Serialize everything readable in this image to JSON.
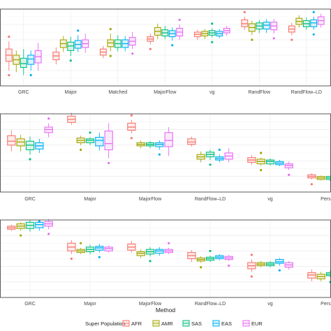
{
  "chart_data": {
    "type": "box",
    "xlabel": "Method",
    "legend": {
      "title": "Super Population",
      "placement": "bottom",
      "entries": [
        {
          "name": "AFR",
          "color": "#F8766D"
        },
        {
          "name": "AMR",
          "color": "#A3A500"
        },
        {
          "name": "SAS",
          "color": "#00BF7D"
        },
        {
          "name": "EAS",
          "color": "#00B0F6"
        },
        {
          "name": "EUR",
          "color": "#E76BF3"
        }
      ]
    },
    "grid": true,
    "panels": [
      {
        "categories": [
          "GRC",
          "Major",
          "Matched",
          "MajorFlow",
          "vg",
          "RandFlow",
          "RandFlow–LD",
          "Peo"
        ],
        "ylim": [
          0,
          10
        ],
        "groups": [
          [
            [
              2.0,
              3.2,
              4.0,
              4.8,
              5.8
            ],
            [
              1.8,
              2.8,
              3.4,
              4.0,
              4.6
            ],
            [
              1.4,
              2.4,
              2.9,
              3.6,
              4.8
            ],
            [
              2.0,
              2.8,
              3.5,
              4.0,
              4.6
            ],
            [
              2.0,
              3.0,
              3.8,
              4.6,
              5.6
            ]
          ],
          [
            [
              2.8,
              3.4,
              3.9,
              4.4,
              5.0
            ],
            [
              4.4,
              5.0,
              5.5,
              6.0,
              6.5
            ],
            [
              3.9,
              4.6,
              5.2,
              5.7,
              6.4
            ],
            [
              4.4,
              4.9,
              5.4,
              5.9,
              6.6
            ],
            [
              4.3,
              5.0,
              5.5,
              6.0,
              6.8
            ]
          ],
          [
            [
              3.6,
              4.0,
              4.4,
              4.8,
              5.2
            ],
            [
              4.5,
              5.1,
              5.6,
              6.0,
              6.8
            ],
            [
              4.5,
              5.0,
              5.5,
              6.0,
              6.6
            ],
            [
              4.5,
              5.0,
              5.5,
              6.0,
              6.5
            ],
            [
              4.8,
              5.3,
              5.8,
              6.3,
              7.0
            ]
          ],
          [
            [
              5.4,
              5.8,
              6.1,
              6.4,
              6.8
            ],
            [
              6.1,
              6.6,
              7.1,
              7.6,
              8.1
            ],
            [
              6.1,
              6.5,
              6.9,
              7.3,
              7.8
            ],
            [
              5.9,
              6.4,
              6.8,
              7.2,
              7.6
            ],
            [
              6.0,
              6.5,
              7.0,
              7.5,
              8.0
            ]
          ],
          [
            [
              6.0,
              6.4,
              6.7,
              7.0,
              7.3
            ],
            [
              6.1,
              6.5,
              6.8,
              7.1,
              7.4
            ],
            [
              6.3,
              6.6,
              6.9,
              7.2,
              7.5
            ],
            [
              6.2,
              6.5,
              6.8,
              7.1,
              7.4
            ],
            [
              6.5,
              6.9,
              7.2,
              7.5,
              7.8
            ]
          ],
          [
            [
              7.3,
              7.7,
              8.1,
              8.6,
              9.0
            ],
            [
              6.6,
              7.1,
              7.6,
              8.1,
              8.5
            ],
            [
              6.9,
              7.4,
              7.8,
              8.2,
              8.6
            ],
            [
              6.9,
              7.4,
              7.9,
              8.3,
              8.7
            ],
            [
              6.8,
              7.3,
              7.8,
              8.3,
              8.7
            ]
          ],
          [
            [
              6.6,
              7.0,
              7.4,
              7.8,
              8.2
            ],
            [
              7.6,
              8.0,
              8.4,
              8.8,
              9.2
            ],
            [
              7.3,
              7.7,
              8.1,
              8.5,
              8.9
            ],
            [
              7.3,
              7.7,
              8.2,
              8.6,
              9.0
            ],
            [
              7.6,
              8.0,
              8.5,
              9.0,
              9.4
            ]
          ],
          [
            [
              8.3,
              8.7,
              9.1,
              9.5,
              9.9
            ],
            [
              8.3,
              8.7,
              9.1,
              9.5,
              9.9
            ],
            [
              8.3,
              8.7,
              9.1,
              9.5,
              9.9
            ],
            [
              8.3,
              8.7,
              9.1,
              9.5,
              9.9
            ],
            [
              8.3,
              8.7,
              9.1,
              9.5,
              9.9
            ]
          ]
        ]
      },
      {
        "categories": [
          "GRC",
          "Major",
          "MajorFlow",
          "RandFlow–LD",
          "vg",
          "Personal"
        ],
        "ylim": [
          0,
          10
        ],
        "groups": [
          [
            [
              5.2,
              6.0,
              6.5,
              7.2,
              7.9
            ],
            [
              5.2,
              5.9,
              6.4,
              6.8,
              7.3
            ],
            [
              4.8,
              5.4,
              6.0,
              6.5,
              7.1
            ],
            [
              5.0,
              5.5,
              5.9,
              6.3,
              6.8
            ],
            [
              7.0,
              7.6,
              8.0,
              8.3,
              8.8
            ]
          ],
          [
            [
              8.6,
              8.9,
              9.3,
              9.7,
              10.1
            ],
            [
              6.0,
              6.3,
              6.6,
              6.9,
              7.2
            ],
            [
              6.0,
              6.3,
              6.6,
              6.8,
              7.0
            ],
            [
              5.3,
              5.9,
              6.6,
              7.0,
              7.6
            ],
            [
              4.3,
              5.4,
              6.2,
              7.8,
              8.8
            ]
          ],
          [
            [
              7.5,
              7.9,
              8.3,
              8.8,
              9.2
            ],
            [
              5.6,
              5.9,
              6.1,
              6.3,
              6.6
            ],
            [
              5.6,
              5.9,
              6.1,
              6.3,
              6.5
            ],
            [
              5.4,
              5.8,
              6.1,
              6.3,
              6.6
            ],
            [
              4.6,
              5.8,
              6.6,
              7.6,
              8.3
            ]
          ],
          [
            [
              5.8,
              6.1,
              6.4,
              6.8,
              7.1
            ],
            [
              3.8,
              4.2,
              4.5,
              4.8,
              5.2
            ],
            [
              4.1,
              4.5,
              4.8,
              5.1,
              5.4
            ],
            [
              3.8,
              4.1,
              4.3,
              4.5,
              4.8
            ],
            [
              3.8,
              4.2,
              4.6,
              5.0,
              5.6
            ]
          ],
          [
            [
              3.5,
              3.8,
              4.1,
              4.4,
              4.7
            ],
            [
              3.4,
              3.6,
              3.9,
              4.2,
              4.4
            ],
            [
              3.4,
              3.6,
              3.9,
              4.1,
              4.3
            ],
            [
              3.3,
              3.5,
              3.7,
              3.9,
              4.1
            ],
            [
              2.8,
              3.1,
              3.4,
              3.6,
              3.9
            ]
          ],
          [
            [
              1.6,
              1.8,
              2.0,
              2.2,
              2.4
            ],
            [
              1.5,
              1.6,
              1.8,
              2.0,
              2.1
            ],
            [
              1.4,
              1.6,
              1.8,
              2.0,
              2.1
            ],
            [
              1.5,
              1.7,
              1.9,
              2.0,
              2.2
            ],
            [
              1.6,
              1.8,
              1.9,
              2.1,
              2.2
            ]
          ]
        ]
      },
      {
        "categories": [
          "GRC",
          "Major",
          "MajorFlow",
          "RandFlow–LD",
          "vg",
          "Personal"
        ],
        "ylim": [
          0,
          10
        ],
        "groups": [
          [
            [
              8.6,
              8.8,
              9.0,
              9.2,
              9.4
            ],
            [
              8.6,
              8.9,
              9.2,
              9.5,
              9.7
            ],
            [
              8.5,
              8.9,
              9.3,
              9.7,
              10.0
            ],
            [
              8.6,
              9.0,
              9.4,
              9.7,
              10.0
            ],
            [
              8.8,
              9.2,
              9.5,
              9.8,
              10.1
            ]
          ],
          [
            [
              5.6,
              6.0,
              6.5,
              7.0,
              7.4
            ],
            [
              5.6,
              5.8,
              6.0,
              6.2,
              6.4
            ],
            [
              5.6,
              5.9,
              6.2,
              6.5,
              6.8
            ],
            [
              5.8,
              6.1,
              6.4,
              6.6,
              6.9
            ],
            [
              5.8,
              6.0,
              6.3,
              6.5,
              6.7
            ]
          ],
          [
            [
              5.8,
              6.1,
              6.5,
              6.9,
              7.3
            ],
            [
              5.1,
              5.4,
              5.7,
              5.9,
              6.2
            ],
            [
              5.3,
              5.6,
              5.9,
              6.2,
              6.5
            ],
            [
              5.4,
              5.7,
              6.0,
              6.2,
              6.5
            ],
            [
              5.6,
              5.8,
              6.0,
              6.2,
              6.4
            ]
          ],
          [
            [
              4.6,
              5.0,
              5.4,
              5.8,
              6.1
            ],
            [
              4.5,
              4.7,
              4.9,
              5.1,
              5.3
            ],
            [
              4.6,
              4.8,
              5.0,
              5.2,
              5.4
            ],
            [
              4.8,
              5.0,
              5.2,
              5.4,
              5.6
            ],
            [
              4.7,
              4.9,
              5.1,
              5.3,
              5.5
            ]
          ],
          [
            [
              3.3,
              3.7,
              4.1,
              4.5,
              4.9
            ],
            [
              3.9,
              4.1,
              4.3,
              4.5,
              4.7
            ],
            [
              3.9,
              4.1,
              4.3,
              4.5,
              4.7
            ],
            [
              4.1,
              4.4,
              4.6,
              4.9,
              5.1
            ],
            [
              3.6,
              3.9,
              4.2,
              4.5,
              4.7
            ]
          ],
          [
            [
              2.1,
              2.5,
              2.9,
              3.2,
              3.6
            ],
            [
              2.1,
              2.4,
              2.7,
              3.0,
              3.3
            ],
            [
              2.6,
              2.8,
              3.0,
              3.2,
              3.5
            ],
            [
              2.6,
              2.9,
              3.2,
              3.5,
              3.8
            ],
            [
              2.8,
              3.1,
              3.4,
              3.6,
              3.9
            ]
          ]
        ]
      }
    ]
  }
}
